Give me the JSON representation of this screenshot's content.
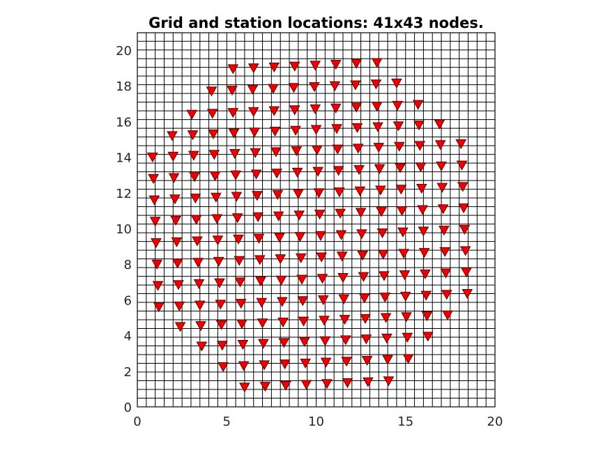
{
  "chart_data": {
    "type": "scatter",
    "title": "Grid and station locations: 41x43 nodes.",
    "xlabel": "",
    "ylabel": "",
    "xlim": [
      0,
      20
    ],
    "ylim": [
      0,
      20
    ],
    "xticks": [
      "0",
      "5",
      "10",
      "15",
      "20"
    ],
    "yticks": [
      "0",
      "2",
      "4",
      "6",
      "8",
      "10",
      "12",
      "14",
      "16",
      "18",
      "20"
    ],
    "grid": {
      "nx": 41,
      "ny": 43,
      "x_range": [
        0,
        20
      ],
      "y_range": [
        0,
        20.5
      ],
      "color": "#000000"
    },
    "marker": {
      "shape": "triangle-down",
      "color": "#ee0000",
      "edge_color": "#660000"
    },
    "stations": [
      [
        5.35,
        18.95
      ],
      [
        6.5,
        19.0
      ],
      [
        7.65,
        19.05
      ],
      [
        8.8,
        19.1
      ],
      [
        9.95,
        19.15
      ],
      [
        11.1,
        19.2
      ],
      [
        12.25,
        19.25
      ],
      [
        13.4,
        19.3
      ],
      [
        4.15,
        17.7
      ],
      [
        5.3,
        17.75
      ],
      [
        6.45,
        17.8
      ],
      [
        7.6,
        17.85
      ],
      [
        8.75,
        17.9
      ],
      [
        9.9,
        17.95
      ],
      [
        11.05,
        18.0
      ],
      [
        12.2,
        18.05
      ],
      [
        13.35,
        18.1
      ],
      [
        14.5,
        18.15
      ],
      [
        3.05,
        16.4
      ],
      [
        4.2,
        16.45
      ],
      [
        5.35,
        16.5
      ],
      [
        6.5,
        16.55
      ],
      [
        7.65,
        16.6
      ],
      [
        8.8,
        16.65
      ],
      [
        9.95,
        16.7
      ],
      [
        11.1,
        16.75
      ],
      [
        12.25,
        16.8
      ],
      [
        13.4,
        16.85
      ],
      [
        14.55,
        16.9
      ],
      [
        15.7,
        16.95
      ],
      [
        1.95,
        15.2
      ],
      [
        3.1,
        15.25
      ],
      [
        4.25,
        15.3
      ],
      [
        5.4,
        15.35
      ],
      [
        6.55,
        15.4
      ],
      [
        7.7,
        15.45
      ],
      [
        8.85,
        15.5
      ],
      [
        10.0,
        15.55
      ],
      [
        11.15,
        15.6
      ],
      [
        12.3,
        15.65
      ],
      [
        13.45,
        15.7
      ],
      [
        14.6,
        15.75
      ],
      [
        15.75,
        15.8
      ],
      [
        16.9,
        15.85
      ],
      [
        0.85,
        14.0
      ],
      [
        2.0,
        14.05
      ],
      [
        3.15,
        14.1
      ],
      [
        4.3,
        14.15
      ],
      [
        5.45,
        14.2
      ],
      [
        6.6,
        14.25
      ],
      [
        7.75,
        14.3
      ],
      [
        8.9,
        14.35
      ],
      [
        10.05,
        14.4
      ],
      [
        11.2,
        14.45
      ],
      [
        12.35,
        14.5
      ],
      [
        13.5,
        14.55
      ],
      [
        14.65,
        14.6
      ],
      [
        15.8,
        14.65
      ],
      [
        16.95,
        14.7
      ],
      [
        18.1,
        14.75
      ],
      [
        0.9,
        12.8
      ],
      [
        2.05,
        12.85
      ],
      [
        3.2,
        12.9
      ],
      [
        4.35,
        12.95
      ],
      [
        5.5,
        13.0
      ],
      [
        6.65,
        13.05
      ],
      [
        7.8,
        13.1
      ],
      [
        8.95,
        13.15
      ],
      [
        10.1,
        13.2
      ],
      [
        11.25,
        13.25
      ],
      [
        12.4,
        13.3
      ],
      [
        13.55,
        13.35
      ],
      [
        14.7,
        13.4
      ],
      [
        15.85,
        13.45
      ],
      [
        17.0,
        13.5
      ],
      [
        18.15,
        13.55
      ],
      [
        0.95,
        11.6
      ],
      [
        2.1,
        11.65
      ],
      [
        3.25,
        11.7
      ],
      [
        4.4,
        11.75
      ],
      [
        5.55,
        11.8
      ],
      [
        6.7,
        11.85
      ],
      [
        7.85,
        11.9
      ],
      [
        9.0,
        11.95
      ],
      [
        10.15,
        12.0
      ],
      [
        11.3,
        12.05
      ],
      [
        12.45,
        12.1
      ],
      [
        13.6,
        12.15
      ],
      [
        14.75,
        12.2
      ],
      [
        15.9,
        12.25
      ],
      [
        17.05,
        12.3
      ],
      [
        18.2,
        12.35
      ],
      [
        1.0,
        10.4
      ],
      [
        2.15,
        10.45
      ],
      [
        3.3,
        10.5
      ],
      [
        4.45,
        10.55
      ],
      [
        5.6,
        10.6
      ],
      [
        6.75,
        10.65
      ],
      [
        7.9,
        10.7
      ],
      [
        9.05,
        10.75
      ],
      [
        10.2,
        10.8
      ],
      [
        11.35,
        10.85
      ],
      [
        12.5,
        10.9
      ],
      [
        13.65,
        10.95
      ],
      [
        14.8,
        11.0
      ],
      [
        15.95,
        11.05
      ],
      [
        17.1,
        11.1
      ],
      [
        18.25,
        11.15
      ],
      [
        1.05,
        9.2
      ],
      [
        2.2,
        9.25
      ],
      [
        3.35,
        9.3
      ],
      [
        4.5,
        9.35
      ],
      [
        5.65,
        9.4
      ],
      [
        6.8,
        9.45
      ],
      [
        7.95,
        9.5
      ],
      [
        9.1,
        9.55
      ],
      [
        10.25,
        9.6
      ],
      [
        11.4,
        9.65
      ],
      [
        12.55,
        9.7
      ],
      [
        13.7,
        9.75
      ],
      [
        14.85,
        9.8
      ],
      [
        16.0,
        9.85
      ],
      [
        17.15,
        9.9
      ],
      [
        18.3,
        9.95
      ],
      [
        1.1,
        8.0
      ],
      [
        2.25,
        8.05
      ],
      [
        3.4,
        8.1
      ],
      [
        4.55,
        8.15
      ],
      [
        5.7,
        8.2
      ],
      [
        6.85,
        8.25
      ],
      [
        8.0,
        8.3
      ],
      [
        9.15,
        8.35
      ],
      [
        10.3,
        8.4
      ],
      [
        11.45,
        8.45
      ],
      [
        12.6,
        8.5
      ],
      [
        13.75,
        8.55
      ],
      [
        14.9,
        8.6
      ],
      [
        16.05,
        8.65
      ],
      [
        17.2,
        8.7
      ],
      [
        18.35,
        8.75
      ],
      [
        1.15,
        6.8
      ],
      [
        2.3,
        6.85
      ],
      [
        3.45,
        6.9
      ],
      [
        4.6,
        6.95
      ],
      [
        5.75,
        7.0
      ],
      [
        6.9,
        7.05
      ],
      [
        8.05,
        7.1
      ],
      [
        9.2,
        7.15
      ],
      [
        10.35,
        7.2
      ],
      [
        11.5,
        7.25
      ],
      [
        12.65,
        7.3
      ],
      [
        13.8,
        7.35
      ],
      [
        14.95,
        7.4
      ],
      [
        16.1,
        7.45
      ],
      [
        17.25,
        7.5
      ],
      [
        18.4,
        7.55
      ],
      [
        1.2,
        5.6
      ],
      [
        2.35,
        5.65
      ],
      [
        3.5,
        5.7
      ],
      [
        4.65,
        5.75
      ],
      [
        5.8,
        5.8
      ],
      [
        6.95,
        5.85
      ],
      [
        8.1,
        5.9
      ],
      [
        9.25,
        5.95
      ],
      [
        10.4,
        6.0
      ],
      [
        11.55,
        6.05
      ],
      [
        12.7,
        6.1
      ],
      [
        13.85,
        6.15
      ],
      [
        15.0,
        6.2
      ],
      [
        16.15,
        6.25
      ],
      [
        17.3,
        6.3
      ],
      [
        18.45,
        6.35
      ],
      [
        2.4,
        4.5
      ],
      [
        3.55,
        4.55
      ],
      [
        4.7,
        4.6
      ],
      [
        5.85,
        4.65
      ],
      [
        7.0,
        4.7
      ],
      [
        8.15,
        4.75
      ],
      [
        9.3,
        4.8
      ],
      [
        10.45,
        4.85
      ],
      [
        11.6,
        4.9
      ],
      [
        12.75,
        4.95
      ],
      [
        13.9,
        5.0
      ],
      [
        15.05,
        5.05
      ],
      [
        16.2,
        5.1
      ],
      [
        17.35,
        5.15
      ],
      [
        3.6,
        3.4
      ],
      [
        4.75,
        3.45
      ],
      [
        5.9,
        3.5
      ],
      [
        7.05,
        3.55
      ],
      [
        8.2,
        3.6
      ],
      [
        9.35,
        3.65
      ],
      [
        10.5,
        3.7
      ],
      [
        11.65,
        3.75
      ],
      [
        12.8,
        3.8
      ],
      [
        13.95,
        3.85
      ],
      [
        15.1,
        3.9
      ],
      [
        16.25,
        3.95
      ],
      [
        4.8,
        2.25
      ],
      [
        5.95,
        2.3
      ],
      [
        7.1,
        2.35
      ],
      [
        8.25,
        2.4
      ],
      [
        9.4,
        2.45
      ],
      [
        10.55,
        2.5
      ],
      [
        11.7,
        2.55
      ],
      [
        12.85,
        2.6
      ],
      [
        14.0,
        2.65
      ],
      [
        15.15,
        2.7
      ],
      [
        6.0,
        1.1
      ],
      [
        7.15,
        1.15
      ],
      [
        8.3,
        1.2
      ],
      [
        9.45,
        1.25
      ],
      [
        10.6,
        1.3
      ],
      [
        11.75,
        1.35
      ],
      [
        12.9,
        1.4
      ],
      [
        14.05,
        1.45
      ]
    ]
  }
}
